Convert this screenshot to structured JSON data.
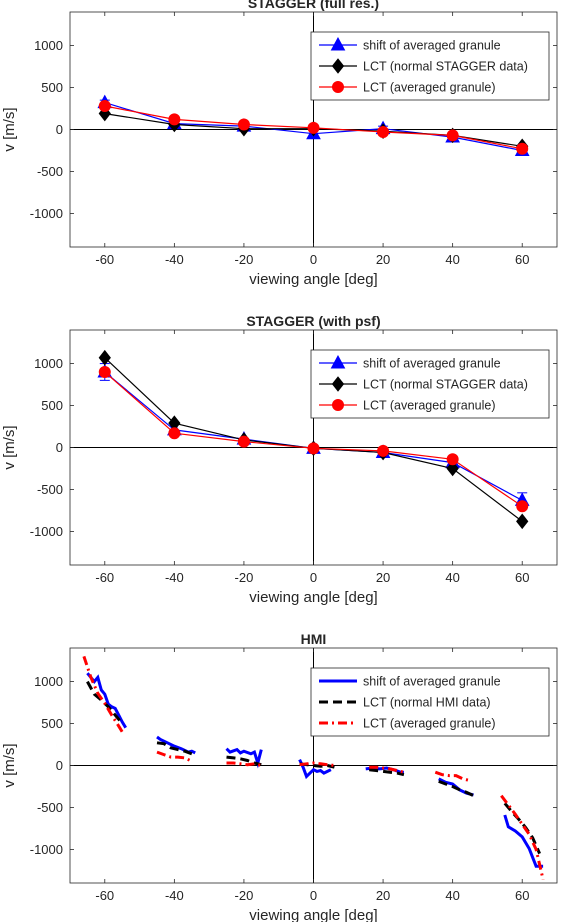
{
  "chart_data": [
    {
      "type": "line",
      "title": "STAGGER (full res.)",
      "xlabel": "viewing angle [deg]",
      "ylabel": "v [m/s]",
      "xlim": [
        -70,
        70
      ],
      "ylim": [
        -1400,
        1400
      ],
      "xticks": [
        "-60",
        "-40",
        "-20",
        "0",
        "20",
        "40",
        "60"
      ],
      "yticks": [
        "1000",
        "500",
        "0",
        "-500",
        "-1000"
      ],
      "legend_position": "top-right",
      "series": [
        {
          "name": "shift of averaged granule",
          "color": "#0000ff",
          "marker": "triangle",
          "x": [
            -60,
            -40,
            -20,
            0,
            20,
            40,
            60
          ],
          "y": [
            320,
            70,
            40,
            -50,
            10,
            -90,
            -250
          ],
          "err": [
            30,
            0,
            0,
            0,
            30,
            0,
            25
          ]
        },
        {
          "name": "LCT (normal STAGGER data)",
          "color": "#000000",
          "marker": "diamond",
          "x": [
            -60,
            -40,
            -20,
            0,
            20,
            40,
            60
          ],
          "y": [
            190,
            60,
            10,
            10,
            -20,
            -70,
            -200
          ],
          "err": [
            0,
            0,
            0,
            0,
            0,
            0,
            0
          ]
        },
        {
          "name": "LCT (averaged granule)",
          "color": "#ff0000",
          "marker": "circle",
          "x": [
            -60,
            -40,
            -20,
            0,
            20,
            40,
            60
          ],
          "y": [
            280,
            120,
            60,
            20,
            -30,
            -70,
            -230
          ],
          "err": [
            0,
            0,
            0,
            0,
            0,
            0,
            0
          ]
        }
      ]
    },
    {
      "type": "line",
      "title": "STAGGER (with psf)",
      "xlabel": "viewing angle [deg]",
      "ylabel": "v [m/s]",
      "xlim": [
        -70,
        70
      ],
      "ylim": [
        -1400,
        1400
      ],
      "xticks": [
        "-60",
        "-40",
        "-20",
        "0",
        "20",
        "40",
        "60"
      ],
      "yticks": [
        "1000",
        "500",
        "0",
        "-500",
        "-1000"
      ],
      "legend_position": "top-right",
      "series": [
        {
          "name": "shift of averaged granule",
          "color": "#0000ff",
          "marker": "triangle",
          "x": [
            -60,
            -40,
            -20,
            0,
            20,
            40,
            60
          ],
          "y": [
            900,
            210,
            100,
            -10,
            -60,
            -180,
            -630
          ],
          "err": [
            100,
            0,
            0,
            0,
            0,
            0,
            90
          ]
        },
        {
          "name": "LCT (normal STAGGER data)",
          "color": "#000000",
          "marker": "diamond",
          "x": [
            -60,
            -40,
            -20,
            0,
            20,
            40,
            60
          ],
          "y": [
            1070,
            290,
            90,
            -10,
            -60,
            -250,
            -880
          ],
          "err": [
            0,
            0,
            0,
            0,
            0,
            0,
            0
          ]
        },
        {
          "name": "LCT (averaged granule)",
          "color": "#ff0000",
          "marker": "circle",
          "x": [
            -60,
            -40,
            -20,
            0,
            20,
            40,
            60
          ],
          "y": [
            900,
            170,
            70,
            -10,
            -40,
            -140,
            -700
          ],
          "err": [
            0,
            0,
            0,
            0,
            0,
            0,
            0
          ]
        }
      ]
    },
    {
      "type": "line",
      "title": "HMI",
      "xlabel": "viewing angle [deg]",
      "ylabel": "v [m/s]",
      "xlim": [
        -70,
        70
      ],
      "ylim": [
        -1400,
        1400
      ],
      "xticks": [
        "-60",
        "-40",
        "-20",
        "0",
        "20",
        "40",
        "60"
      ],
      "yticks": [
        "1000",
        "500",
        "0",
        "-500",
        "-1000"
      ],
      "legend_position": "top-right",
      "series": [
        {
          "name": "shift of averaged granule",
          "color": "#0000ff",
          "style": "solid",
          "segments": [
            [
              [
                -65,
                1100
              ],
              [
                -63,
                1000
              ],
              [
                -62,
                1050
              ],
              [
                -61,
                900
              ],
              [
                -60,
                850
              ],
              [
                -59,
                730
              ],
              [
                -58,
                700
              ],
              [
                -57,
                680
              ],
              [
                -56,
                600
              ],
              [
                -55,
                520
              ],
              [
                -54,
                450
              ]
            ],
            [
              [
                -45,
                340
              ],
              [
                -44,
                310
              ],
              [
                -42,
                270
              ],
              [
                -40,
                230
              ],
              [
                -38,
                200
              ],
              [
                -36,
                160
              ],
              [
                -35,
                170
              ],
              [
                -34,
                150
              ]
            ],
            [
              [
                -25,
                200
              ],
              [
                -24,
                160
              ],
              [
                -22,
                190
              ],
              [
                -21,
                150
              ],
              [
                -20,
                170
              ],
              [
                -18,
                140
              ],
              [
                -17,
                160
              ],
              [
                -16,
                30
              ],
              [
                -15,
                190
              ]
            ],
            [
              [
                -4,
                70
              ],
              [
                -3,
                -20
              ],
              [
                -2,
                -130
              ],
              [
                0,
                -50
              ],
              [
                1,
                -70
              ],
              [
                2,
                -60
              ],
              [
                3,
                -90
              ],
              [
                4,
                -70
              ],
              [
                5,
                -50
              ]
            ],
            [
              [
                15,
                -40
              ],
              [
                17,
                -30
              ],
              [
                19,
                -40
              ],
              [
                21,
                -30
              ],
              [
                23,
                -50
              ],
              [
                25,
                -80
              ],
              [
                26,
                -80
              ]
            ],
            [
              [
                36,
                -160
              ],
              [
                38,
                -200
              ],
              [
                40,
                -220
              ],
              [
                42,
                -290
              ],
              [
                44,
                -330
              ],
              [
                46,
                -350
              ]
            ],
            [
              [
                55,
                -590
              ],
              [
                56,
                -730
              ],
              [
                58,
                -780
              ],
              [
                60,
                -850
              ],
              [
                62,
                -990
              ],
              [
                64,
                -1200
              ],
              [
                66,
                -1200
              ]
            ]
          ]
        },
        {
          "name": "LCT (normal HMI data)",
          "color": "#000000",
          "style": "dashed",
          "segments": [
            [
              [
                -65,
                1000
              ],
              [
                -63,
                850
              ],
              [
                -61,
                780
              ],
              [
                -59,
                700
              ],
              [
                -57,
                600
              ],
              [
                -55,
                500
              ]
            ],
            [
              [
                -45,
                270
              ],
              [
                -43,
                260
              ],
              [
                -41,
                210
              ],
              [
                -39,
                190
              ],
              [
                -37,
                170
              ],
              [
                -35,
                140
              ]
            ],
            [
              [
                -25,
                100
              ],
              [
                -23,
                90
              ],
              [
                -21,
                80
              ],
              [
                -19,
                60
              ],
              [
                -17,
                30
              ],
              [
                -15,
                10
              ]
            ],
            [
              [
                -4,
                20
              ],
              [
                -2,
                10
              ],
              [
                0,
                0
              ],
              [
                2,
                -10
              ],
              [
                4,
                0
              ],
              [
                6,
                -20
              ]
            ],
            [
              [
                16,
                -50
              ],
              [
                18,
                -60
              ],
              [
                20,
                -70
              ],
              [
                22,
                -80
              ],
              [
                24,
                -90
              ],
              [
                26,
                -110
              ]
            ],
            [
              [
                36,
                -190
              ],
              [
                38,
                -220
              ],
              [
                40,
                -250
              ],
              [
                42,
                -290
              ],
              [
                44,
                -320
              ],
              [
                46,
                -360
              ]
            ],
            [
              [
                55,
                -450
              ],
              [
                57,
                -550
              ],
              [
                59,
                -640
              ],
              [
                61,
                -740
              ],
              [
                63,
                -860
              ],
              [
                65,
                -1050
              ]
            ]
          ]
        },
        {
          "name": "LCT (averaged granule)",
          "color": "#ff0000",
          "style": "dashdot",
          "segments": [
            [
              [
                -66,
                1300
              ],
              [
                -64,
                1050
              ],
              [
                -62,
                860
              ],
              [
                -60,
                740
              ],
              [
                -58,
                600
              ],
              [
                -56,
                470
              ],
              [
                -55,
                400
              ]
            ],
            [
              [
                -45,
                160
              ],
              [
                -43,
                130
              ],
              [
                -41,
                100
              ],
              [
                -39,
                100
              ],
              [
                -37,
                90
              ],
              [
                -35,
                50
              ]
            ],
            [
              [
                -25,
                30
              ],
              [
                -23,
                30
              ],
              [
                -21,
                20
              ],
              [
                -19,
                10
              ],
              [
                -17,
                20
              ],
              [
                -15,
                0
              ]
            ],
            [
              [
                -4,
                10
              ],
              [
                -2,
                20
              ],
              [
                0,
                30
              ],
              [
                2,
                20
              ],
              [
                4,
                10
              ],
              [
                6,
                0
              ]
            ],
            [
              [
                16,
                -20
              ],
              [
                18,
                -20
              ],
              [
                20,
                -30
              ],
              [
                22,
                -40
              ],
              [
                24,
                -60
              ],
              [
                26,
                -80
              ]
            ],
            [
              [
                35,
                -80
              ],
              [
                37,
                -110
              ],
              [
                39,
                -120
              ],
              [
                41,
                -120
              ],
              [
                43,
                -160
              ],
              [
                45,
                -180
              ]
            ],
            [
              [
                54,
                -360
              ],
              [
                56,
                -470
              ],
              [
                58,
                -580
              ],
              [
                60,
                -700
              ],
              [
                62,
                -820
              ],
              [
                64,
                -1000
              ],
              [
                66,
                -1360
              ]
            ]
          ]
        }
      ]
    }
  ]
}
